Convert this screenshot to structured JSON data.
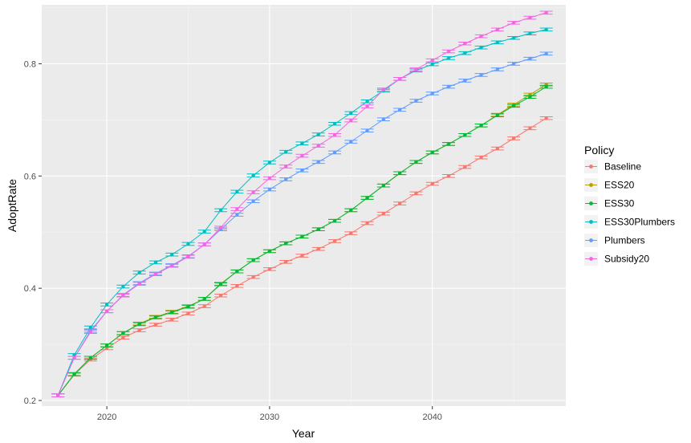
{
  "chart_data": {
    "type": "line",
    "xlabel": "Year",
    "ylabel": "AdoptRate",
    "xlim": [
      2016,
      2048.2
    ],
    "ylim": [
      0.19,
      0.905
    ],
    "x_ticks": [
      2020,
      2030,
      2040
    ],
    "y_ticks": [
      0.2,
      0.4,
      0.6,
      0.8
    ],
    "x_tick_labels": [
      "2020",
      "2030",
      "2040"
    ],
    "y_tick_labels": [
      "0.2",
      "0.4",
      "0.6",
      "0.8"
    ],
    "grid": true,
    "error_bars": true,
    "legend": {
      "title": "Policy",
      "position": "right"
    },
    "x": [
      2017,
      2018,
      2019,
      2020,
      2021,
      2022,
      2023,
      2024,
      2025,
      2026,
      2027,
      2028,
      2029,
      2030,
      2031,
      2032,
      2033,
      2034,
      2035,
      2036,
      2037,
      2038,
      2039,
      2040,
      2041,
      2042,
      2043,
      2044,
      2045,
      2046,
      2047
    ],
    "series": [
      {
        "name": "Baseline",
        "color": "#F8766D",
        "values": [
          0.209,
          0.246,
          0.273,
          0.293,
          0.312,
          0.325,
          0.335,
          0.344,
          0.355,
          0.368,
          0.387,
          0.404,
          0.42,
          0.434,
          0.447,
          0.458,
          0.47,
          0.484,
          0.498,
          0.516,
          0.533,
          0.551,
          0.569,
          0.586,
          0.6,
          0.616,
          0.633,
          0.649,
          0.667,
          0.685,
          0.703
        ]
      },
      {
        "name": "ESS20",
        "color": "#B79F00",
        "values": [
          0.209,
          0.247,
          0.276,
          0.298,
          0.32,
          0.337,
          0.349,
          0.358,
          0.368,
          0.381,
          0.408,
          0.43,
          0.45,
          0.466,
          0.48,
          0.492,
          0.505,
          0.52,
          0.539,
          0.561,
          0.583,
          0.605,
          0.625,
          0.642,
          0.657,
          0.673,
          0.69,
          0.709,
          0.727,
          0.745,
          0.763
        ]
      },
      {
        "name": "ESS30",
        "color": "#00BA38",
        "values": [
          0.209,
          0.247,
          0.276,
          0.298,
          0.32,
          0.336,
          0.348,
          0.357,
          0.367,
          0.381,
          0.407,
          0.43,
          0.45,
          0.466,
          0.48,
          0.492,
          0.505,
          0.52,
          0.539,
          0.561,
          0.583,
          0.605,
          0.625,
          0.642,
          0.657,
          0.673,
          0.69,
          0.708,
          0.725,
          0.741,
          0.759
        ]
      },
      {
        "name": "ESS30Plumbers",
        "color": "#00BFC4",
        "values": [
          0.209,
          0.281,
          0.33,
          0.371,
          0.403,
          0.428,
          0.446,
          0.46,
          0.479,
          0.501,
          0.539,
          0.572,
          0.601,
          0.624,
          0.643,
          0.658,
          0.674,
          0.693,
          0.712,
          0.733,
          0.752,
          0.773,
          0.788,
          0.799,
          0.81,
          0.819,
          0.829,
          0.838,
          0.846,
          0.854,
          0.861
        ]
      },
      {
        "name": "Plumbers",
        "color": "#619CFF",
        "values": [
          0.209,
          0.276,
          0.324,
          0.359,
          0.388,
          0.409,
          0.426,
          0.441,
          0.457,
          0.478,
          0.505,
          0.531,
          0.555,
          0.576,
          0.594,
          0.61,
          0.625,
          0.642,
          0.661,
          0.681,
          0.701,
          0.718,
          0.734,
          0.747,
          0.759,
          0.77,
          0.78,
          0.79,
          0.8,
          0.809,
          0.818
        ]
      },
      {
        "name": "Subsidy20",
        "color": "#F564E3",
        "values": [
          0.209,
          0.276,
          0.322,
          0.359,
          0.387,
          0.408,
          0.425,
          0.44,
          0.456,
          0.478,
          0.508,
          0.541,
          0.571,
          0.596,
          0.617,
          0.636,
          0.654,
          0.673,
          0.699,
          0.724,
          0.754,
          0.773,
          0.79,
          0.806,
          0.822,
          0.836,
          0.849,
          0.861,
          0.873,
          0.882,
          0.891
        ]
      }
    ]
  }
}
